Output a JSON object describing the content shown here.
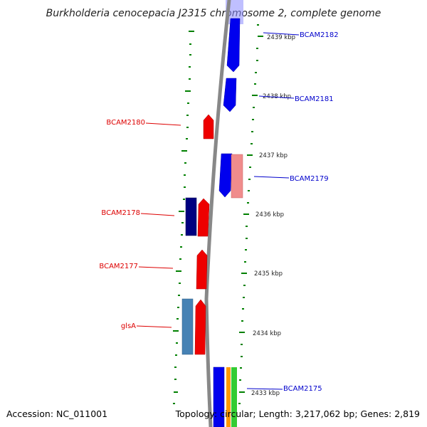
{
  "title": "Burkholderia cenocepacia J2315 chromosome 2, complete genome",
  "footer": {
    "accession": "Accession: NC_011001",
    "topology": "Topology: circular; Length: 3,217,062 bp; Genes: 2,819"
  },
  "colors": {
    "forward_label": "#0000cc",
    "reverse_label": "#dd0000",
    "tick": "#008000",
    "backbone": "#888888"
  },
  "position_ticks": [
    {
      "label": "2439 kbp",
      "kbp": 2439
    },
    {
      "label": "2438 kbp",
      "kbp": 2438
    },
    {
      "label": "2437 kbp",
      "kbp": 2437
    },
    {
      "label": "2436 kbp",
      "kbp": 2436
    },
    {
      "label": "2435 kbp",
      "kbp": 2435
    },
    {
      "label": "2434 kbp",
      "kbp": 2434
    },
    {
      "label": "2433 kbp",
      "kbp": 2433
    }
  ],
  "genes": [
    {
      "name": "BCAM2182",
      "strand": "forward"
    },
    {
      "name": "BCAM2181",
      "strand": "forward"
    },
    {
      "name": "BCAM2180",
      "strand": "reverse"
    },
    {
      "name": "BCAM2179",
      "strand": "forward"
    },
    {
      "name": "BCAM2178",
      "strand": "reverse"
    },
    {
      "name": "BCAM2177",
      "strand": "reverse"
    },
    {
      "name": "glsA",
      "strand": "reverse"
    },
    {
      "name": "BCAM2175",
      "strand": "forward"
    }
  ]
}
